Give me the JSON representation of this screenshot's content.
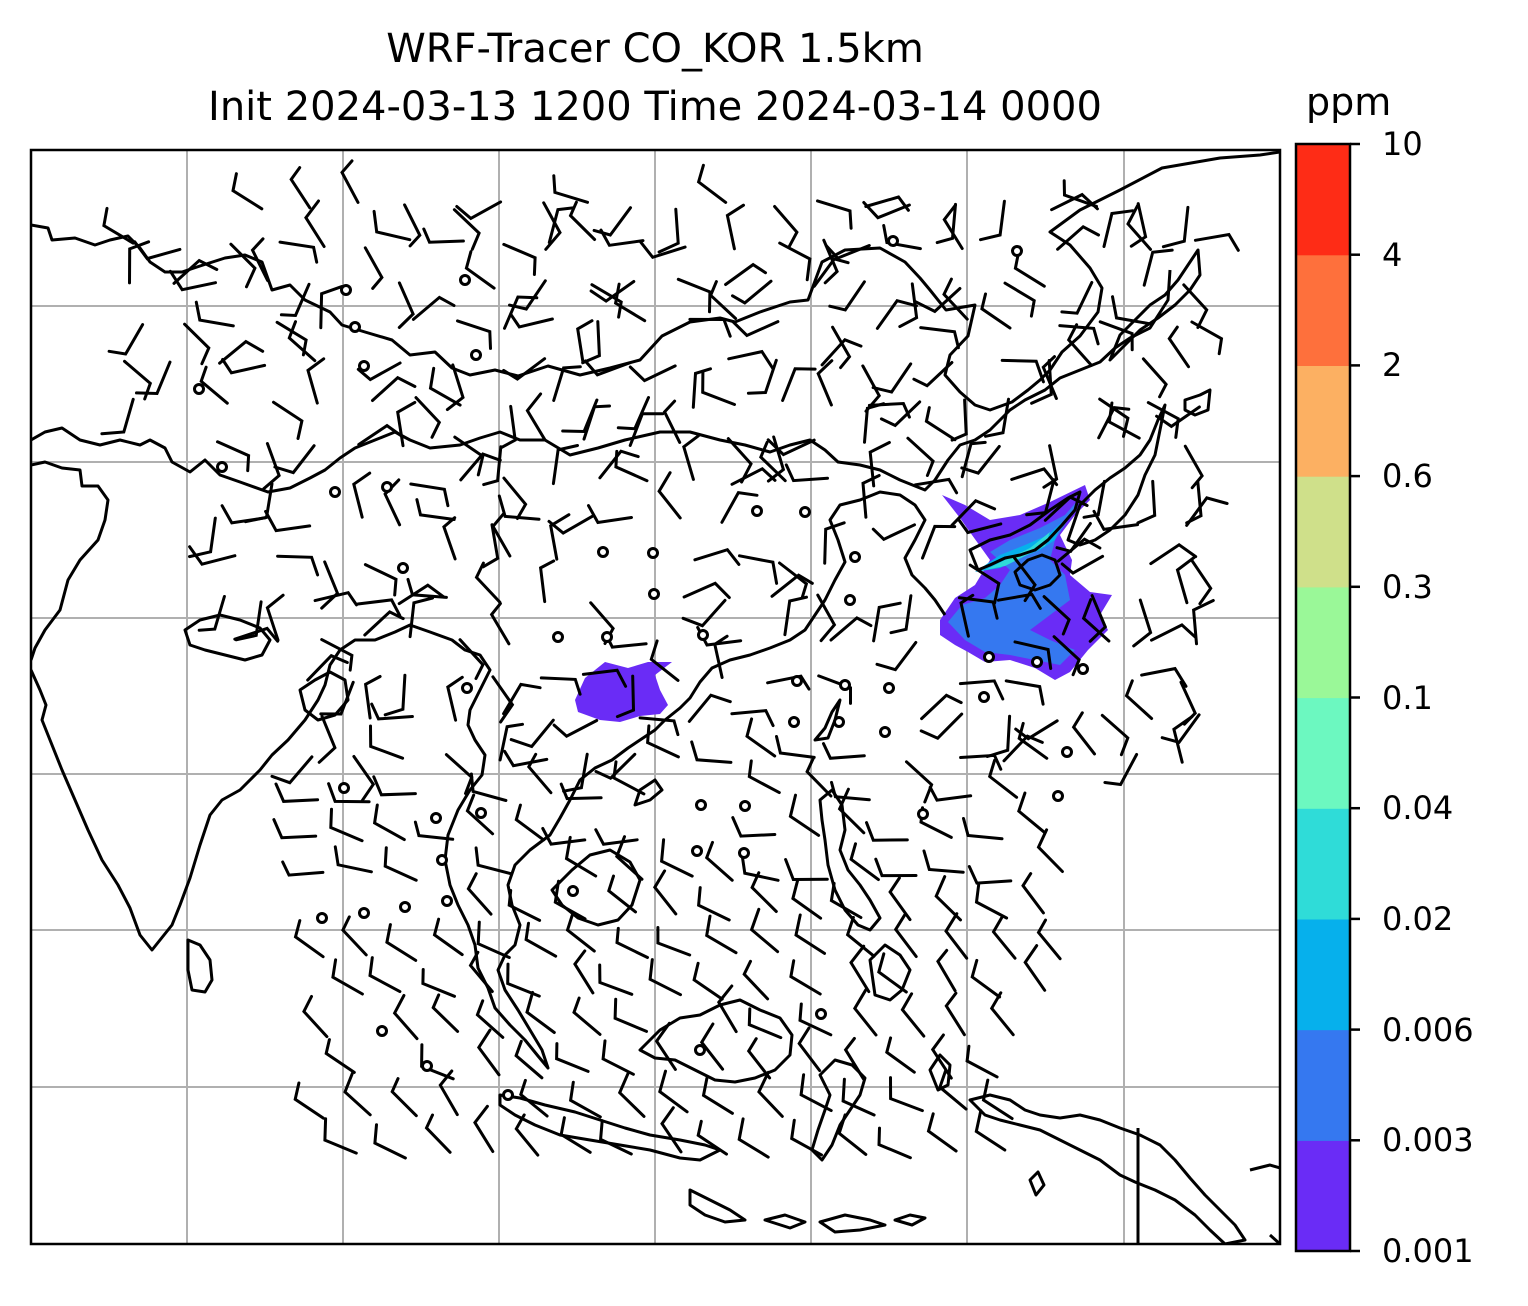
{
  "title": {
    "line1": "WRF-Tracer CO_KOR 1.5km",
    "line2": "Init 2024-03-13 1200 Time 2024-03-14 0000"
  },
  "colorbar": {
    "unit": "ppm",
    "levels": [
      "0.001",
      "0.003",
      "0.006",
      "0.02",
      "0.04",
      "0.1",
      "0.3",
      "0.6",
      "2",
      "4",
      "10"
    ],
    "colors": [
      "#6a2cf6",
      "#3578f0",
      "#06b0ec",
      "#2fdcd8",
      "#6cf8c0",
      "#9af898",
      "#cfe08a",
      "#fcb062",
      "#fe703c",
      "#fe2c16"
    ]
  },
  "map": {
    "gridlines": true,
    "coastline_color": "#000000",
    "grid_color": "#b0b0b0",
    "barb_color": "#000000"
  }
}
